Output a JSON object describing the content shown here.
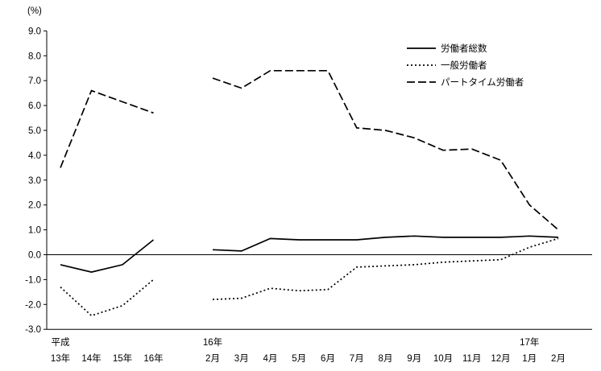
{
  "chart_data": {
    "type": "line",
    "title": "",
    "unit_label": "(%)",
    "xlabel": "",
    "ylabel": "(%)",
    "ylim": [
      -3,
      9
    ],
    "ytick_step": 1,
    "grid": false,
    "legend_position": "top-center-right",
    "x_groups": [
      {
        "id": "annual",
        "labels": [
          "13年",
          "14年",
          "15年",
          "16年"
        ],
        "top_labels": [
          "平成",
          "",
          "",
          ""
        ]
      },
      {
        "id": "monthly",
        "labels": [
          "2月",
          "3月",
          "4月",
          "5月",
          "6月",
          "7月",
          "8月",
          "9月",
          "10月",
          "11月",
          "12月",
          "1月",
          "2月"
        ],
        "top_labels": [
          "16年",
          "",
          "",
          "",
          "",
          "",
          "",
          "",
          "",
          "",
          "",
          "17年",
          ""
        ]
      }
    ],
    "series": [
      {
        "name": "労働者総数",
        "line_style": "solid",
        "annual": [
          -0.4,
          -0.7,
          -0.4,
          0.6
        ],
        "monthly": [
          0.2,
          0.15,
          0.65,
          0.6,
          0.6,
          0.6,
          0.7,
          0.75,
          0.7,
          0.7,
          0.7,
          0.75,
          0.7
        ]
      },
      {
        "name": "一般労働者",
        "line_style": "dotted",
        "annual": [
          -1.3,
          -2.45,
          -2.05,
          -1.0
        ],
        "monthly": [
          -1.8,
          -1.75,
          -1.35,
          -1.45,
          -1.4,
          -0.5,
          -0.45,
          -0.4,
          -0.3,
          -0.25,
          -0.2,
          0.3,
          0.65
        ]
      },
      {
        "name": "パートタイム労働者",
        "line_style": "dashed",
        "annual": [
          3.5,
          6.6,
          6.15,
          5.7
        ],
        "monthly": [
          7.1,
          6.7,
          7.4,
          7.4,
          7.4,
          5.1,
          5.0,
          4.7,
          4.2,
          4.25,
          3.8,
          2.0,
          1.0
        ]
      }
    ],
    "colors": {
      "line": "#000000",
      "background": "#ffffff"
    }
  }
}
